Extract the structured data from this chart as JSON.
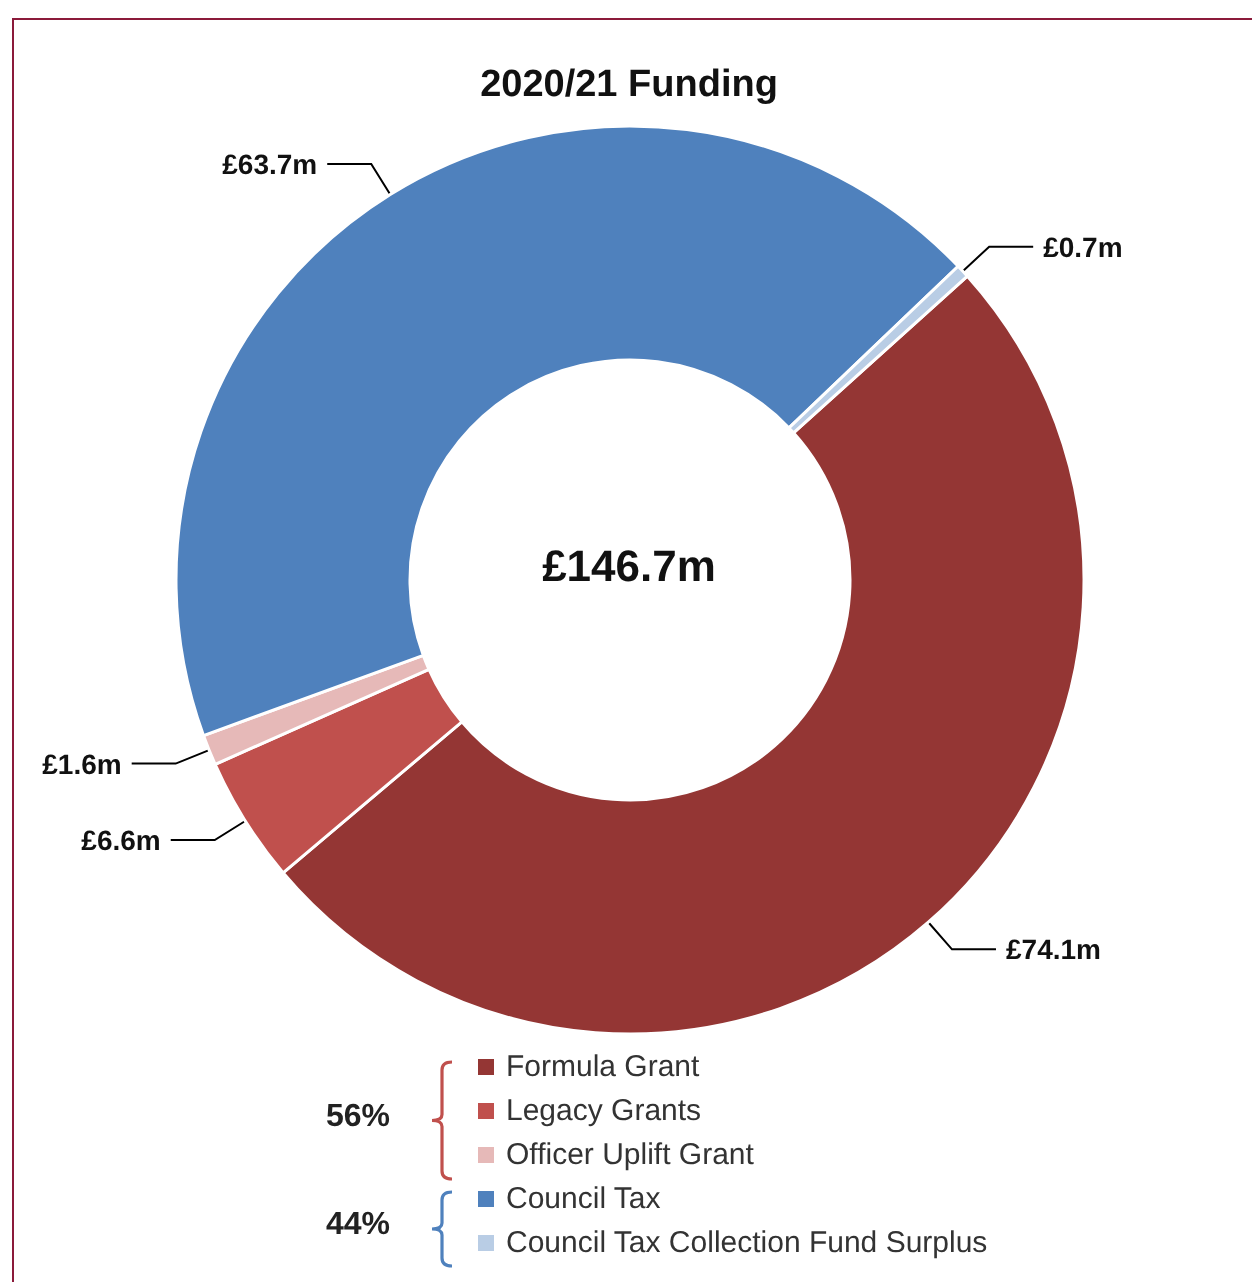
{
  "chart_data": {
    "type": "donut",
    "title": "2020/21 Funding",
    "categories": [
      "Formula Grant",
      "Legacy Grants",
      "Officer Uplift Grant",
      "Council Tax",
      "Council Tax Collection Fund Surplus"
    ],
    "values": [
      74.1,
      6.6,
      1.6,
      63.7,
      0.7
    ],
    "colors": [
      "#943634",
      "#c0504d",
      "#e6b9b8",
      "#4f81bd",
      "#b9cde5"
    ],
    "value_labels": [
      "£74.1m",
      "£6.6m",
      "£1.6m",
      "£63.7m",
      "£0.7m"
    ],
    "annotations": [
      "£146.7m",
      "56%",
      "44%"
    ],
    "legend": "bottom"
  }
}
